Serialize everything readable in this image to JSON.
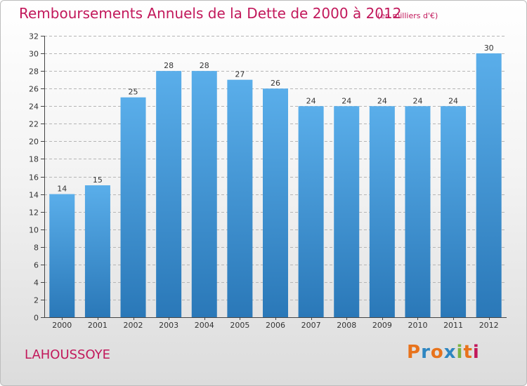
{
  "header": {
    "title": "Remboursements Annuels de la Dette de 2000 à 2012",
    "subtitle": "(en milliers d'€)"
  },
  "footer": {
    "commune": "LAHOUSSOYE",
    "logo_text": "Proxiti",
    "logo_colors": [
      "#e8731c",
      "#2e86c1",
      "#e8731c",
      "#2e86c1",
      "#7cb342",
      "#e8731c",
      "#c2185b"
    ]
  },
  "colors": {
    "title": "#c2185b",
    "bar_light": "#5aaeea",
    "bar_dark": "#2a78b8",
    "gridline": "#b5b5b5",
    "axis": "#444444"
  },
  "chart_data": {
    "type": "bar",
    "title": "Remboursements Annuels de la Dette de 2000 à 2012",
    "subtitle": "(en milliers d'€)",
    "categories": [
      "2000",
      "2001",
      "2002",
      "2003",
      "2004",
      "2005",
      "2006",
      "2007",
      "2008",
      "2009",
      "2010",
      "2011",
      "2012"
    ],
    "values": [
      14,
      15,
      25,
      28,
      28,
      27,
      26,
      24,
      24,
      24,
      24,
      24,
      30
    ],
    "data_labels": [
      "14",
      "15",
      "25",
      "28",
      "28",
      "27",
      "26",
      "24",
      "24",
      "24",
      "24",
      "24",
      "30"
    ],
    "yticks": [
      0,
      2,
      4,
      6,
      8,
      10,
      12,
      14,
      16,
      18,
      20,
      22,
      24,
      26,
      28,
      30,
      32
    ],
    "ylim": [
      0,
      32
    ],
    "grid": true,
    "xlabel": "",
    "ylabel": ""
  }
}
